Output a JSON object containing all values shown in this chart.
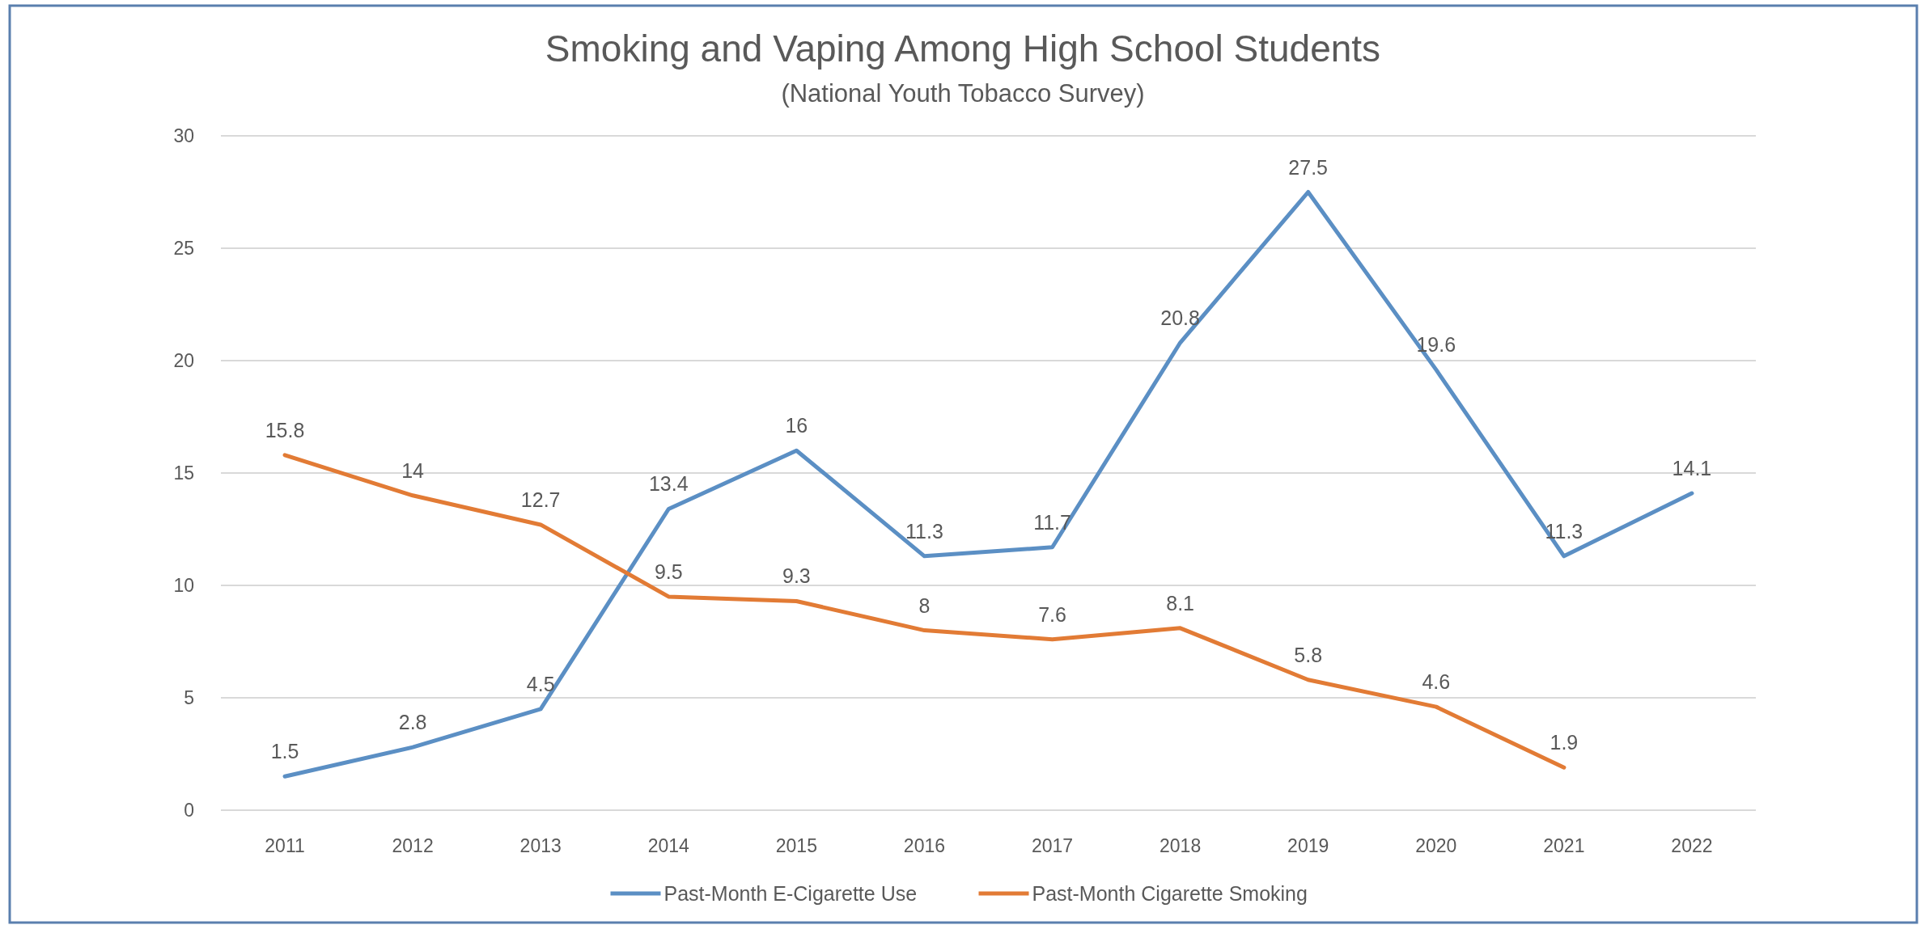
{
  "chart_data": {
    "type": "line",
    "title": "Smoking and Vaping Among High School Students",
    "subtitle": "(National Youth Tobacco Survey)",
    "categories": [
      "2011",
      "2012",
      "2013",
      "2014",
      "2015",
      "2016",
      "2017",
      "2018",
      "2019",
      "2020",
      "2021",
      "2022"
    ],
    "series": [
      {
        "name": "Past-Month E-Cigarette Use",
        "color": "#5b8fc4",
        "values": [
          1.5,
          2.8,
          4.5,
          13.4,
          16,
          11.3,
          11.7,
          20.8,
          27.5,
          19.6,
          11.3,
          14.1
        ]
      },
      {
        "name": "Past-Month Cigarette Smoking",
        "color": "#e27b35",
        "values": [
          15.8,
          14,
          12.7,
          9.5,
          9.3,
          8,
          7.6,
          8.1,
          5.8,
          4.6,
          1.9,
          null
        ]
      }
    ],
    "ylim": [
      0,
      30
    ],
    "yticks": [
      0,
      5,
      10,
      15,
      20,
      25,
      30
    ],
    "grid": "y",
    "legend": "bottom",
    "data_labels": true
  }
}
